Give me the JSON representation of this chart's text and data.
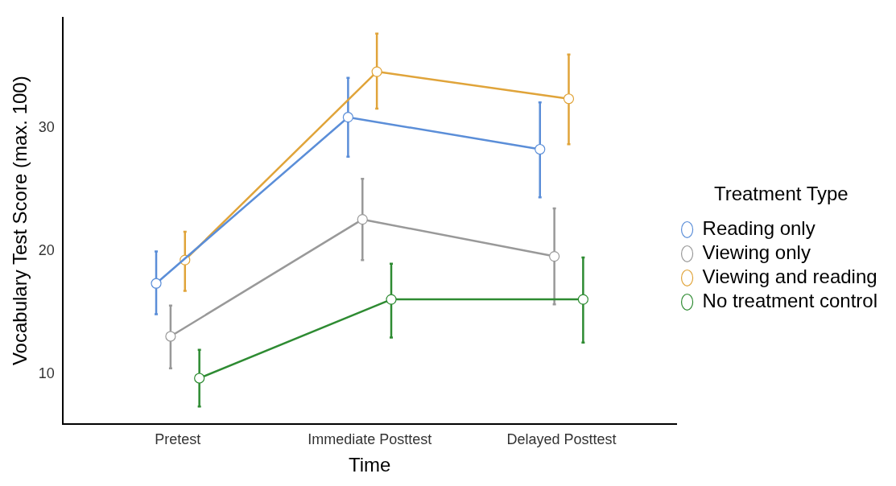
{
  "chart_data": {
    "type": "line",
    "xlabel": "Time",
    "ylabel": "Vocabulary Test Score (max. 100)",
    "legend_title": "Treatment Type",
    "legend": "right",
    "marker": "circle",
    "grid": false,
    "line_style": "solid",
    "categories": [
      "Pretest",
      "Immediate Posttest",
      "Delayed Posttest"
    ],
    "ylim": [
      6,
      39
    ],
    "yticks": [
      10,
      20,
      30
    ],
    "series": [
      {
        "name": "Reading only",
        "color": "#5b8ed8",
        "values": [
          17.4,
          30.9,
          28.3
        ],
        "errors": [
          [
            14.9,
            20.0
          ],
          [
            27.7,
            34.1
          ],
          [
            24.4,
            32.1
          ]
        ]
      },
      {
        "name": "Viewing only",
        "color": "#999999",
        "values": [
          13.1,
          22.6,
          19.6
        ],
        "errors": [
          [
            10.5,
            15.6
          ],
          [
            19.3,
            25.9
          ],
          [
            15.7,
            23.5
          ]
        ]
      },
      {
        "name": "Viewing and reading",
        "color": "#e0a43a",
        "values": [
          19.3,
          34.6,
          32.4
        ],
        "errors": [
          [
            16.8,
            21.6
          ],
          [
            31.6,
            37.7
          ],
          [
            28.7,
            36.0
          ]
        ]
      },
      {
        "name": "No treatment control",
        "color": "#2e8b32",
        "values": [
          9.7,
          16.1,
          16.1
        ],
        "errors": [
          [
            7.4,
            12.0
          ],
          [
            13.0,
            19.0
          ],
          [
            12.6,
            19.5
          ]
        ]
      }
    ]
  }
}
